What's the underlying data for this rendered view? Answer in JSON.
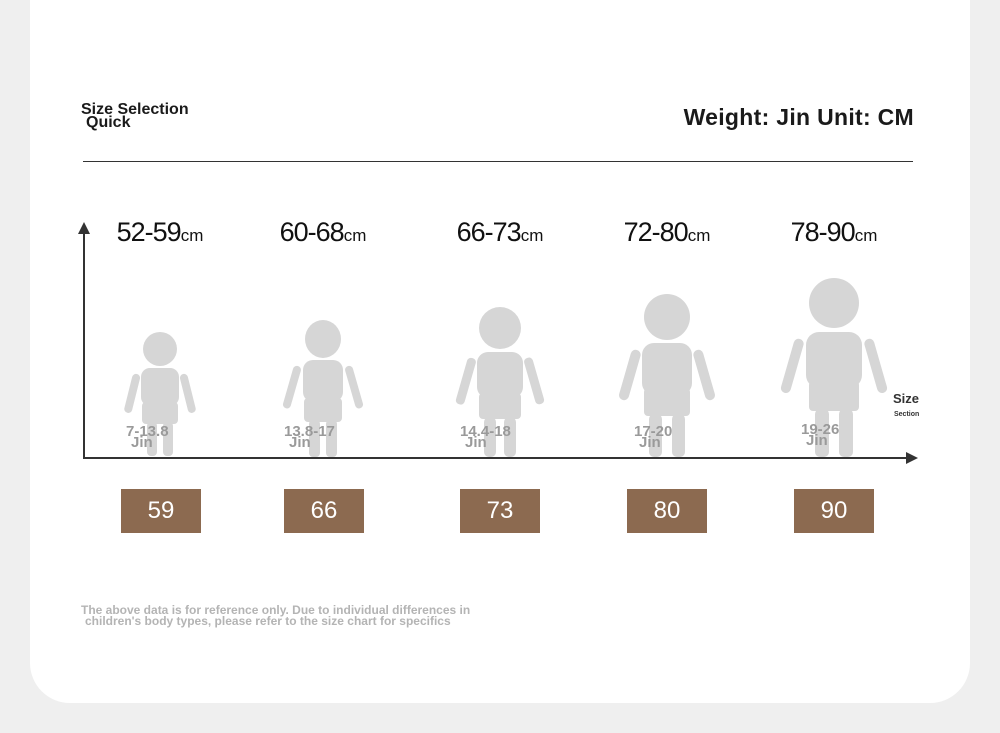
{
  "header": {
    "quick_line1": "Size Selection",
    "quick_line2": "Quick",
    "unit_title": "Weight: Jin Unit: CM"
  },
  "axis": {
    "size_label": "Size",
    "size_sub": "Section"
  },
  "columns": [
    {
      "range": "52-59",
      "unit": "cm",
      "weight": "7-13.8",
      "weight_unit": "Jin",
      "size": "59"
    },
    {
      "range": "60-68",
      "unit": "cm",
      "weight": "13.8-17",
      "weight_unit": "Jin",
      "size": "66"
    },
    {
      "range": "66-73",
      "unit": "cm",
      "weight": "14.4-18",
      "weight_unit": "Jin",
      "size": "73"
    },
    {
      "range": "72-80",
      "unit": "cm",
      "weight": "17-20",
      "weight_unit": "Jin",
      "size": "80"
    },
    {
      "range": "78-90",
      "unit": "cm",
      "weight": "19-26",
      "weight_unit": "Jin",
      "size": "90"
    }
  ],
  "footer": {
    "note_line1": "The above data is for reference only. Due to individual differences in",
    "note_line2": "children's body types, please refer to the size chart for specifics"
  },
  "colors": {
    "badge": "#8c6a50",
    "silhouette": "#d2d2d2",
    "background": "#efefef"
  }
}
